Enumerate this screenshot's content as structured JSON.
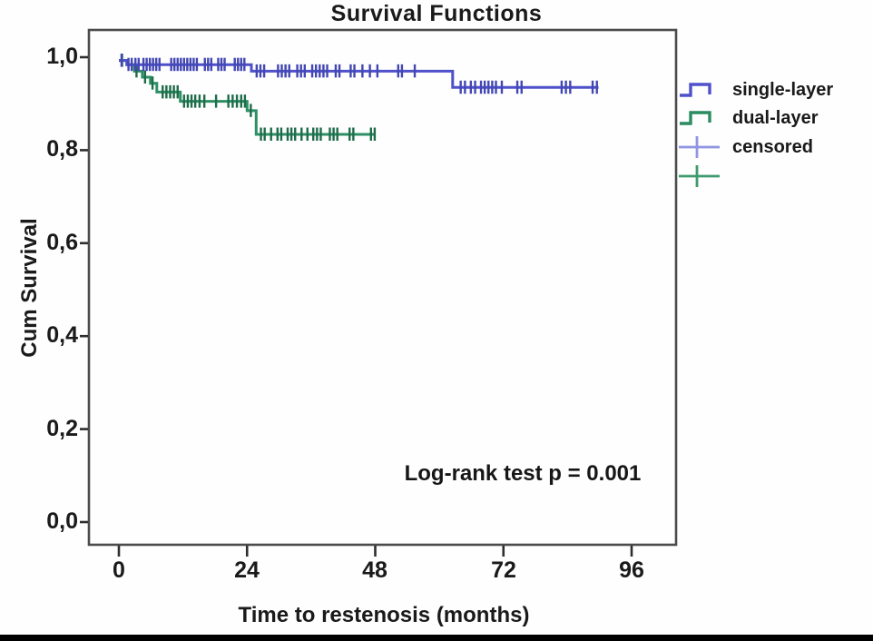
{
  "title": "Survival Functions",
  "y_axis": {
    "title": "Cum Survival",
    "tick_labels": [
      "1,0",
      "0,8",
      "0,6",
      "0,4",
      "0,2",
      "0,0"
    ],
    "tick_values": [
      1.0,
      0.8,
      0.6,
      0.4,
      0.2,
      0.0
    ]
  },
  "x_axis": {
    "title": "Time to restenosis (months)",
    "tick_labels": [
      "0",
      "24",
      "48",
      "72",
      "96"
    ],
    "tick_values": [
      0,
      24,
      48,
      72,
      96
    ]
  },
  "annotation": {
    "text": "Log-rank test p = 0.001"
  },
  "legend": {
    "items": [
      {
        "label": "single-layer",
        "symbol": "step",
        "color": "#4f51cb"
      },
      {
        "label": "dual-layer",
        "symbol": "step",
        "color": "#2a8c60"
      },
      {
        "label": "censored",
        "symbol": "plus",
        "color": "#9095e2"
      },
      {
        "label": "",
        "symbol": "plus",
        "color": "#3f9a6e"
      }
    ]
  },
  "colors": {
    "frame": "#4b4b4b",
    "tick": "#2e2e2e",
    "text": "#1a1a1a",
    "single_layer_line": "#4f51cb",
    "single_layer_censor": "#4347b2",
    "dual_layer_line": "#2d9065",
    "dual_layer_censor": "#1f6b4a",
    "bottom_bar": "#000000"
  },
  "chart_data": {
    "type": "line",
    "subtype": "kaplan_meier_step",
    "title": "Survival Functions",
    "xlabel": "Time to restenosis (months)",
    "ylabel": "Cum Survival",
    "xlim": [
      -6,
      104
    ],
    "ylim": [
      -0.05,
      1.06
    ],
    "x_ticks": [
      0,
      24,
      48,
      72,
      96
    ],
    "y_ticks": [
      0.0,
      0.2,
      0.4,
      0.6,
      0.8,
      1.0
    ],
    "grid": false,
    "legend_position": "right",
    "annotation": "Log-rank test p = 0.001",
    "series": [
      {
        "name": "dual-layer",
        "color": "#2d9065",
        "censor_color": "#1f6b4a",
        "steps": [
          [
            0,
            0.993
          ],
          [
            1.5,
            0.984
          ],
          [
            2.9,
            0.97
          ],
          [
            4.4,
            0.957
          ],
          [
            5.9,
            0.944
          ],
          [
            7.1,
            0.925
          ],
          [
            11.5,
            0.905
          ],
          [
            24.0,
            0.885
          ],
          [
            25.7,
            0.834
          ],
          [
            48.0,
            0.834
          ]
        ],
        "censored": [
          [
            0.6,
            0.993
          ],
          [
            3.3,
            0.97
          ],
          [
            4.9,
            0.957
          ],
          [
            6.3,
            0.944
          ],
          [
            8.2,
            0.925
          ],
          [
            8.9,
            0.925
          ],
          [
            9.6,
            0.925
          ],
          [
            10.3,
            0.925
          ],
          [
            11.0,
            0.925
          ],
          [
            12.2,
            0.905
          ],
          [
            12.9,
            0.905
          ],
          [
            13.6,
            0.905
          ],
          [
            14.3,
            0.905
          ],
          [
            15.1,
            0.905
          ],
          [
            16.0,
            0.905
          ],
          [
            18.2,
            0.905
          ],
          [
            20.5,
            0.905
          ],
          [
            21.3,
            0.905
          ],
          [
            22.1,
            0.905
          ],
          [
            22.9,
            0.905
          ],
          [
            23.6,
            0.905
          ],
          [
            24.7,
            0.885
          ],
          [
            26.6,
            0.834
          ],
          [
            27.3,
            0.834
          ],
          [
            28.5,
            0.834
          ],
          [
            29.7,
            0.834
          ],
          [
            30.4,
            0.834
          ],
          [
            31.6,
            0.834
          ],
          [
            32.3,
            0.834
          ],
          [
            33.0,
            0.834
          ],
          [
            34.2,
            0.834
          ],
          [
            35.3,
            0.834
          ],
          [
            36.4,
            0.834
          ],
          [
            37.1,
            0.834
          ],
          [
            37.8,
            0.834
          ],
          [
            39.5,
            0.834
          ],
          [
            40.2,
            0.834
          ],
          [
            40.9,
            0.834
          ],
          [
            43.2,
            0.834
          ],
          [
            43.9,
            0.834
          ],
          [
            47.2,
            0.834
          ],
          [
            47.9,
            0.834
          ]
        ]
      },
      {
        "name": "single-layer",
        "color": "#4f51cb",
        "censor_color": "#4347b2",
        "steps": [
          [
            0,
            0.993
          ],
          [
            1.5,
            0.984
          ],
          [
            24.8,
            0.97
          ],
          [
            62.5,
            0.935
          ],
          [
            89.8,
            0.935
          ]
        ],
        "censored": [
          [
            0.5,
            0.993
          ],
          [
            1.8,
            0.984
          ],
          [
            2.4,
            0.984
          ],
          [
            3.1,
            0.984
          ],
          [
            3.7,
            0.984
          ],
          [
            4.6,
            0.984
          ],
          [
            5.2,
            0.984
          ],
          [
            5.8,
            0.984
          ],
          [
            6.4,
            0.984
          ],
          [
            7.0,
            0.984
          ],
          [
            7.6,
            0.984
          ],
          [
            9.8,
            0.984
          ],
          [
            10.4,
            0.984
          ],
          [
            11.0,
            0.984
          ],
          [
            11.6,
            0.984
          ],
          [
            12.2,
            0.984
          ],
          [
            12.8,
            0.984
          ],
          [
            13.4,
            0.984
          ],
          [
            14.0,
            0.984
          ],
          [
            14.6,
            0.984
          ],
          [
            16.1,
            0.984
          ],
          [
            16.7,
            0.984
          ],
          [
            17.3,
            0.984
          ],
          [
            18.6,
            0.984
          ],
          [
            19.2,
            0.984
          ],
          [
            19.8,
            0.984
          ],
          [
            21.7,
            0.984
          ],
          [
            22.3,
            0.984
          ],
          [
            22.9,
            0.984
          ],
          [
            23.5,
            0.984
          ],
          [
            25.8,
            0.97
          ],
          [
            26.5,
            0.97
          ],
          [
            27.2,
            0.97
          ],
          [
            29.8,
            0.97
          ],
          [
            30.5,
            0.97
          ],
          [
            31.2,
            0.97
          ],
          [
            31.9,
            0.97
          ],
          [
            33.4,
            0.97
          ],
          [
            34.1,
            0.97
          ],
          [
            34.8,
            0.97
          ],
          [
            36.2,
            0.97
          ],
          [
            36.9,
            0.97
          ],
          [
            37.6,
            0.97
          ],
          [
            38.3,
            0.97
          ],
          [
            39.0,
            0.97
          ],
          [
            40.6,
            0.97
          ],
          [
            41.3,
            0.97
          ],
          [
            43.4,
            0.97
          ],
          [
            44.1,
            0.97
          ],
          [
            45.6,
            0.97
          ],
          [
            47.0,
            0.97
          ],
          [
            48.4,
            0.97
          ],
          [
            52.3,
            0.97
          ],
          [
            53.0,
            0.97
          ],
          [
            55.4,
            0.97
          ],
          [
            64.0,
            0.935
          ],
          [
            64.8,
            0.935
          ],
          [
            65.9,
            0.935
          ],
          [
            66.7,
            0.935
          ],
          [
            67.8,
            0.935
          ],
          [
            68.5,
            0.935
          ],
          [
            69.2,
            0.935
          ],
          [
            69.9,
            0.935
          ],
          [
            70.6,
            0.935
          ],
          [
            71.7,
            0.935
          ],
          [
            74.6,
            0.935
          ],
          [
            75.4,
            0.935
          ],
          [
            82.9,
            0.935
          ],
          [
            83.7,
            0.935
          ],
          [
            84.5,
            0.935
          ],
          [
            88.7,
            0.935
          ],
          [
            89.5,
            0.935
          ]
        ]
      }
    ]
  }
}
